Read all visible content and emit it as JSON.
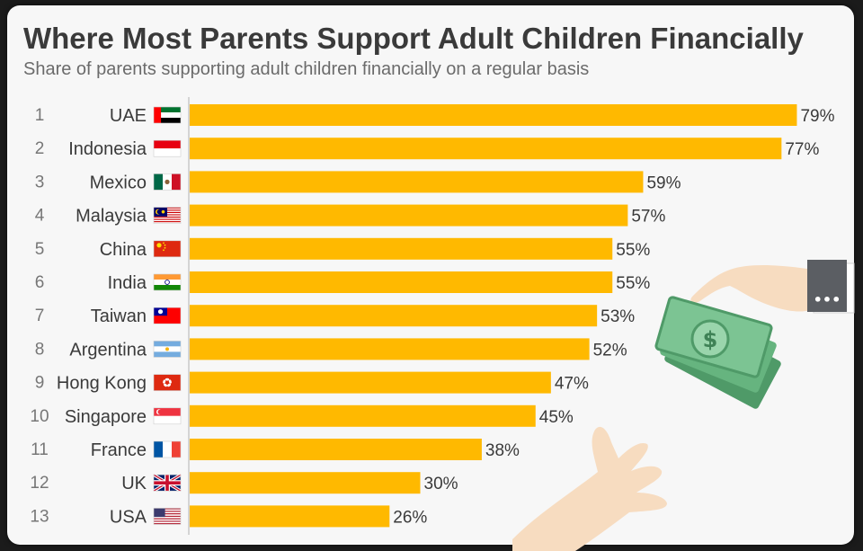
{
  "header": {
    "title": "Where Most Parents Support Adult Children Financially",
    "subtitle": "Share of parents supporting adult children financially on a regular basis"
  },
  "more_button": {
    "label": "•••"
  },
  "colors": {
    "bar": "#ffb900",
    "text": "#3a3a3a",
    "rank": "#777777",
    "axis": "#c8c8c8",
    "money": "#5cad75",
    "skin": "#f7dcc0"
  },
  "chart_data": {
    "type": "bar",
    "orientation": "horizontal",
    "title": "Where Most Parents Support Adult Children Financially",
    "subtitle": "Share of parents supporting adult children financially on a regular basis",
    "xlim": [
      0,
      100
    ],
    "grid": false,
    "value_suffix": "%",
    "ranks": [
      "1",
      "2",
      "3",
      "4",
      "5",
      "6",
      "7",
      "8",
      "9",
      "10",
      "11",
      "12",
      "13"
    ],
    "categories": [
      "UAE",
      "Indonesia",
      "Mexico",
      "Malaysia",
      "China",
      "India",
      "Taiwan",
      "Argentina",
      "Hong Kong",
      "Singapore",
      "France",
      "UK",
      "USA"
    ],
    "flags": [
      "uae-flag-icon",
      "indonesia-flag-icon",
      "mexico-flag-icon",
      "malaysia-flag-icon",
      "china-flag-icon",
      "india-flag-icon",
      "taiwan-flag-icon",
      "argentina-flag-icon",
      "hong-kong-flag-icon",
      "singapore-flag-icon",
      "france-flag-icon",
      "uk-flag-icon",
      "usa-flag-icon"
    ],
    "values": [
      79,
      77,
      59,
      57,
      55,
      55,
      53,
      52,
      47,
      45,
      38,
      30,
      26
    ]
  }
}
